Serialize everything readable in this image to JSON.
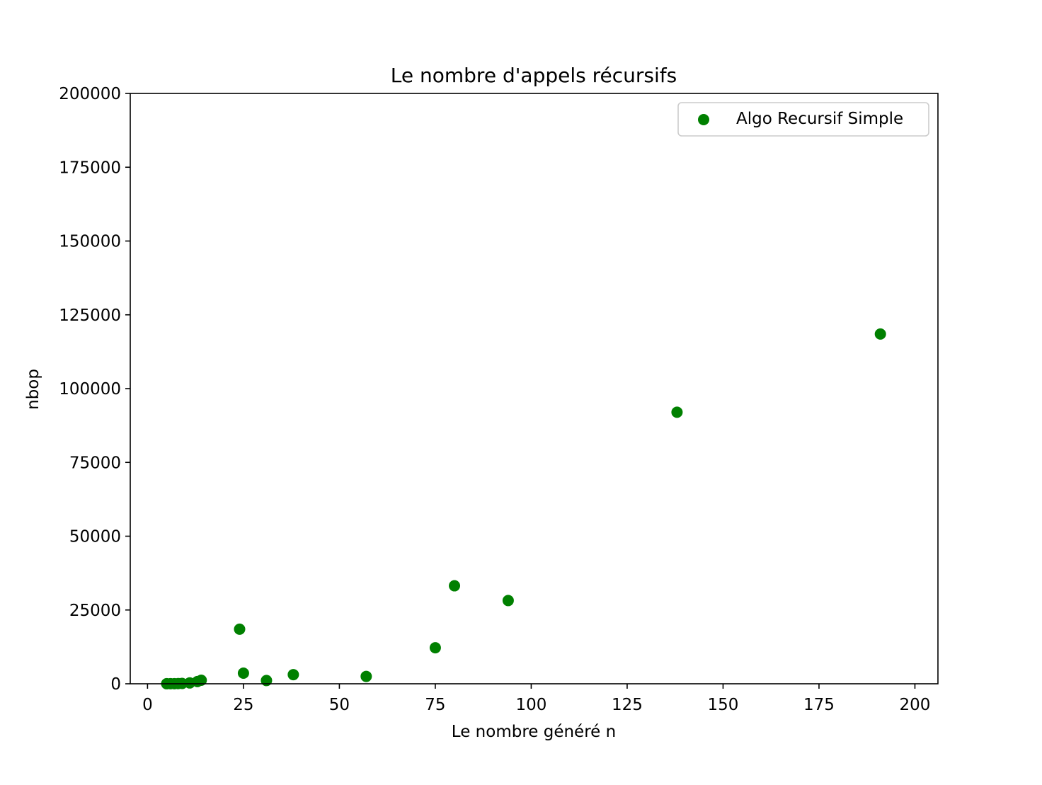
{
  "chart_data": {
    "type": "scatter",
    "title": "Le nombre d'appels récursifs",
    "xlabel": "Le nombre généré n",
    "ylabel": "nbop",
    "xlim": [
      -4.5,
      206
    ],
    "ylim": [
      0,
      200000
    ],
    "xticks": [
      0,
      25,
      50,
      75,
      100,
      125,
      150,
      175,
      200
    ],
    "yticks": [
      0,
      25000,
      50000,
      75000,
      100000,
      125000,
      150000,
      175000,
      200000
    ],
    "grid": false,
    "legend_position": "top-right",
    "series": [
      {
        "name": "Algo Recursif Simple",
        "color": "#008000",
        "x": [
          5,
          6,
          7,
          8,
          9,
          11,
          13,
          14,
          24,
          25,
          31,
          38,
          57,
          75,
          80,
          94,
          138,
          191
        ],
        "y": [
          15,
          25,
          40,
          70,
          110,
          290,
          750,
          1200,
          18500,
          3600,
          1100,
          3100,
          2500,
          12200,
          33200,
          28200,
          92000,
          118500
        ]
      }
    ]
  }
}
